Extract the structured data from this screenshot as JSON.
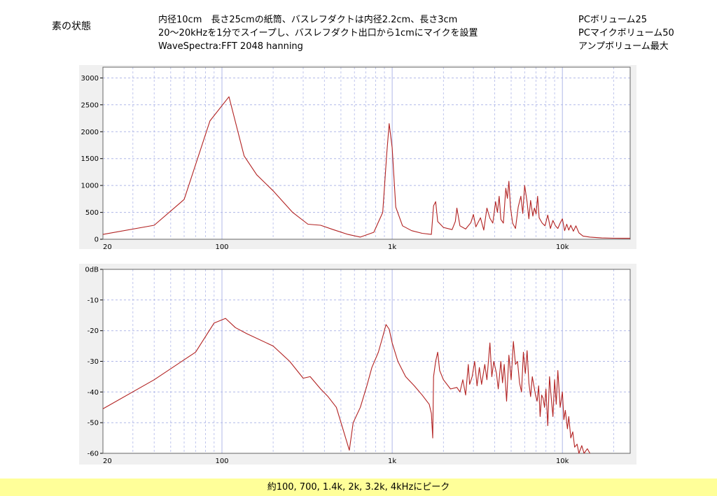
{
  "header": {
    "state_label": "素の状態",
    "desc_lines": [
      "内径10cm　長さ25cmの紙筒、バスレフダクトは内径2.2cm、長さ3cm",
      "20～20kHzを1分でスイープし、バスレフダクト出口から1cmにマイクを設置",
      "WaveSpectra:FFT 2048 hanning"
    ],
    "settings_lines": [
      "PCボリューム25",
      "PCマイクボリューム50",
      "アンプボリューム最大"
    ]
  },
  "footer": {
    "text": "約100, 700, 1.4k, 2k, 3.2k, 4kHzにピーク"
  },
  "colors": {
    "series": "#b22222",
    "grid": "#b0b8e8",
    "panel_bg": "#f0f0f0",
    "plot_bg": "#ffffff",
    "footer_bg": "#ffff99"
  },
  "chart_data": [
    {
      "type": "line",
      "xscale": "log",
      "xlim": [
        20,
        25000
      ],
      "ylim": [
        0,
        3200
      ],
      "grid": true,
      "x_tick_labels": [
        {
          "x": 20,
          "label": "20"
        },
        {
          "x": 100,
          "label": "100"
        },
        {
          "x": 1000,
          "label": "1k"
        },
        {
          "x": 10000,
          "label": "10k"
        }
      ],
      "y_ticks": [
        {
          "y": 0,
          "label": "0"
        },
        {
          "y": 500,
          "label": "500"
        },
        {
          "y": 1000,
          "label": "1000"
        },
        {
          "y": 1500,
          "label": "1500"
        },
        {
          "y": 2000,
          "label": "2000"
        },
        {
          "y": 2500,
          "label": "2500"
        },
        {
          "y": 3000,
          "label": "3000"
        }
      ],
      "series": [
        {
          "points": [
            [
              20,
              90
            ],
            [
              40,
              260
            ],
            [
              60,
              740
            ],
            [
              85,
              2200
            ],
            [
              110,
              2650
            ],
            [
              135,
              1550
            ],
            [
              160,
              1200
            ],
            [
              200,
              900
            ],
            [
              260,
              500
            ],
            [
              320,
              280
            ],
            [
              380,
              260
            ],
            [
              450,
              180
            ],
            [
              550,
              90
            ],
            [
              650,
              40
            ],
            [
              780,
              130
            ],
            [
              880,
              500
            ],
            [
              930,
              1600
            ],
            [
              960,
              2150
            ],
            [
              1000,
              1700
            ],
            [
              1050,
              600
            ],
            [
              1150,
              250
            ],
            [
              1300,
              160
            ],
            [
              1500,
              110
            ],
            [
              1700,
              90
            ],
            [
              1750,
              620
            ],
            [
              1800,
              700
            ],
            [
              1850,
              330
            ],
            [
              2000,
              220
            ],
            [
              2250,
              180
            ],
            [
              2350,
              330
            ],
            [
              2400,
              580
            ],
            [
              2500,
              250
            ],
            [
              2700,
              190
            ],
            [
              2900,
              310
            ],
            [
              3000,
              460
            ],
            [
              3100,
              230
            ],
            [
              3300,
              400
            ],
            [
              3450,
              170
            ],
            [
              3600,
              580
            ],
            [
              3750,
              390
            ],
            [
              3900,
              300
            ],
            [
              4050,
              700
            ],
            [
              4150,
              500
            ],
            [
              4250,
              800
            ],
            [
              4350,
              370
            ],
            [
              4500,
              300
            ],
            [
              4650,
              950
            ],
            [
              4750,
              760
            ],
            [
              4850,
              1080
            ],
            [
              4950,
              600
            ],
            [
              5100,
              300
            ],
            [
              5300,
              200
            ],
            [
              5500,
              600
            ],
            [
              5700,
              800
            ],
            [
              5850,
              480
            ],
            [
              6000,
              1000
            ],
            [
              6200,
              690
            ],
            [
              6350,
              380
            ],
            [
              6500,
              720
            ],
            [
              6700,
              430
            ],
            [
              6850,
              580
            ],
            [
              7000,
              470
            ],
            [
              7150,
              800
            ],
            [
              7300,
              400
            ],
            [
              7600,
              300
            ],
            [
              7900,
              250
            ],
            [
              8200,
              450
            ],
            [
              8500,
              200
            ],
            [
              8800,
              350
            ],
            [
              9100,
              250
            ],
            [
              9400,
              200
            ],
            [
              9700,
              300
            ],
            [
              10000,
              380
            ],
            [
              10300,
              160
            ],
            [
              10600,
              280
            ],
            [
              10900,
              170
            ],
            [
              11200,
              260
            ],
            [
              11600,
              150
            ],
            [
              12000,
              250
            ],
            [
              12500,
              120
            ],
            [
              13200,
              60
            ],
            [
              14500,
              40
            ],
            [
              17000,
              25
            ],
            [
              20000,
              20
            ],
            [
              25000,
              18
            ]
          ]
        }
      ]
    },
    {
      "type": "line",
      "xscale": "log",
      "xlim": [
        20,
        25000
      ],
      "ylim": [
        -60,
        0
      ],
      "grid": true,
      "x_tick_labels": [
        {
          "x": 20,
          "label": "20"
        },
        {
          "x": 100,
          "label": "100"
        },
        {
          "x": 1000,
          "label": "1k"
        },
        {
          "x": 10000,
          "label": "10k"
        }
      ],
      "y_ticks": [
        {
          "y": 0,
          "label": "0dB"
        },
        {
          "y": -10,
          "label": "-10"
        },
        {
          "y": -20,
          "label": "-20"
        },
        {
          "y": -30,
          "label": "-30"
        },
        {
          "y": -40,
          "label": "-40"
        },
        {
          "y": -50,
          "label": "-50"
        },
        {
          "y": -60,
          "label": "-60"
        }
      ],
      "series": [
        {
          "points": [
            [
              20,
              -45.5
            ],
            [
              40,
              -36
            ],
            [
              70,
              -27
            ],
            [
              90,
              -17.5
            ],
            [
              105,
              -16
            ],
            [
              120,
              -19
            ],
            [
              140,
              -21
            ],
            [
              200,
              -25
            ],
            [
              250,
              -30
            ],
            [
              300,
              -35.5
            ],
            [
              330,
              -35
            ],
            [
              380,
              -39
            ],
            [
              420,
              -41.5
            ],
            [
              470,
              -45
            ],
            [
              520,
              -53
            ],
            [
              560,
              -59
            ],
            [
              590,
              -50
            ],
            [
              650,
              -45
            ],
            [
              710,
              -38
            ],
            [
              760,
              -32
            ],
            [
              830,
              -27
            ],
            [
              880,
              -22
            ],
            [
              920,
              -18
            ],
            [
              960,
              -19.5
            ],
            [
              1000,
              -24
            ],
            [
              1080,
              -30
            ],
            [
              1200,
              -35
            ],
            [
              1350,
              -38
            ],
            [
              1500,
              -41
            ],
            [
              1650,
              -44
            ],
            [
              1700,
              -47
            ],
            [
              1730,
              -55
            ],
            [
              1750,
              -35
            ],
            [
              1800,
              -30
            ],
            [
              1850,
              -27
            ],
            [
              1900,
              -33
            ],
            [
              2000,
              -36
            ],
            [
              2200,
              -39
            ],
            [
              2400,
              -38.5
            ],
            [
              2500,
              -40
            ],
            [
              2600,
              -36
            ],
            [
              2700,
              -41
            ],
            [
              2800,
              -31
            ],
            [
              2850,
              -37.5
            ],
            [
              2950,
              -35
            ],
            [
              3050,
              -30
            ],
            [
              3150,
              -38
            ],
            [
              3250,
              -32
            ],
            [
              3350,
              -37.5
            ],
            [
              3500,
              -31
            ],
            [
              3600,
              -36
            ],
            [
              3750,
              -24
            ],
            [
              3850,
              -35
            ],
            [
              3950,
              -30
            ],
            [
              4100,
              -34
            ],
            [
              4200,
              -39
            ],
            [
              4350,
              -30
            ],
            [
              4450,
              -37
            ],
            [
              4550,
              -31
            ],
            [
              4700,
              -43
            ],
            [
              4850,
              -28
            ],
            [
              5000,
              -36
            ],
            [
              5150,
              -23.5
            ],
            [
              5300,
              -31
            ],
            [
              5450,
              -30
            ],
            [
              5600,
              -37
            ],
            [
              5750,
              -40
            ],
            [
              5900,
              -27
            ],
            [
              6050,
              -34
            ],
            [
              6200,
              -26.5
            ],
            [
              6350,
              -37
            ],
            [
              6500,
              -41.5
            ],
            [
              6650,
              -35
            ],
            [
              6800,
              -38
            ],
            [
              6950,
              -41
            ],
            [
              7100,
              -43
            ],
            [
              7250,
              -38
            ],
            [
              7400,
              -48
            ],
            [
              7550,
              -41
            ],
            [
              7700,
              -42
            ],
            [
              7850,
              -45
            ],
            [
              8000,
              -39
            ],
            [
              8200,
              -51
            ],
            [
              8400,
              -35
            ],
            [
              8600,
              -42
            ],
            [
              8800,
              -48
            ],
            [
              9000,
              -36
            ],
            [
              9200,
              -44
            ],
            [
              9400,
              -33
            ],
            [
              9700,
              -45
            ],
            [
              10000,
              -40
            ],
            [
              10200,
              -49
            ],
            [
              10400,
              -46
            ],
            [
              10700,
              -52
            ],
            [
              10900,
              -48
            ],
            [
              11200,
              -55
            ],
            [
              11500,
              -53
            ],
            [
              11800,
              -58
            ],
            [
              12200,
              -57
            ],
            [
              12500,
              -60
            ],
            [
              13000,
              -57.5
            ],
            [
              13400,
              -60
            ],
            [
              14000,
              -58.5
            ],
            [
              14500,
              -60
            ]
          ]
        }
      ]
    }
  ]
}
